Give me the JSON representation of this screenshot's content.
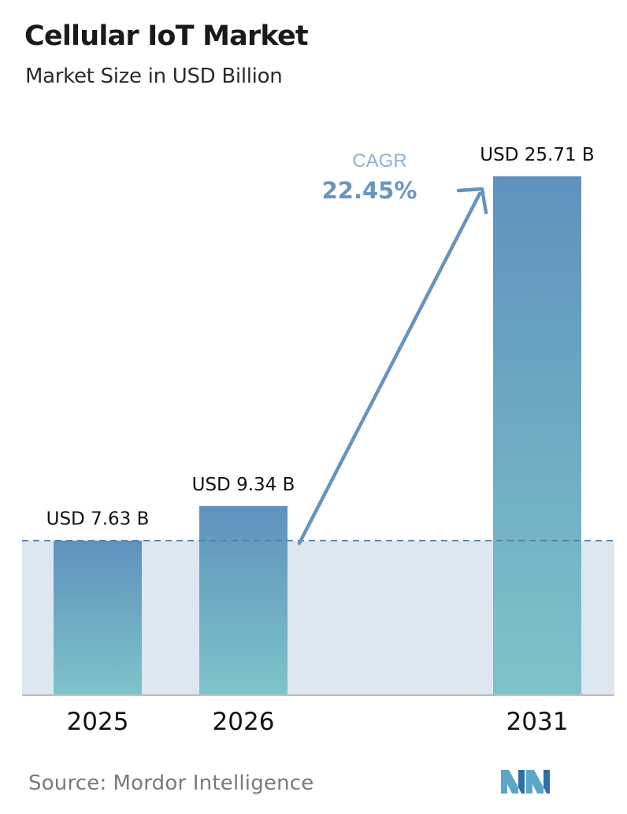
{
  "header": {
    "title": "Cellular IoT Market",
    "subtitle": "Market Size in USD Billion"
  },
  "cagr": {
    "label": "CAGR",
    "value": "22.45%"
  },
  "source": {
    "label": "Source:",
    "name": "Mordor Intelligence"
  },
  "colors": {
    "bar_top": "#5e92bd",
    "bar_bottom": "#7fc3c9",
    "baseline_fill": "#dde7f1",
    "dashed_line": "#4f7ea8",
    "arrow": "#6694bd",
    "cagr_label": "#8fb0d0",
    "cagr_value": "#6a95bf",
    "axis": "#bdbdbd"
  },
  "chart_data": {
    "type": "bar",
    "categories": [
      "2025",
      "2026",
      "2031"
    ],
    "values": [
      7.63,
      9.34,
      25.71
    ],
    "value_labels": [
      "USD 7.63 B",
      "USD 9.34 B",
      "USD 25.71 B"
    ],
    "title": "Cellular IoT Market",
    "subtitle": "Market Size in USD Billion",
    "xlabel": "",
    "ylabel": "",
    "ylim": [
      0,
      28
    ],
    "grid": false,
    "legend": "none",
    "baseline_reference": 7.63
  }
}
